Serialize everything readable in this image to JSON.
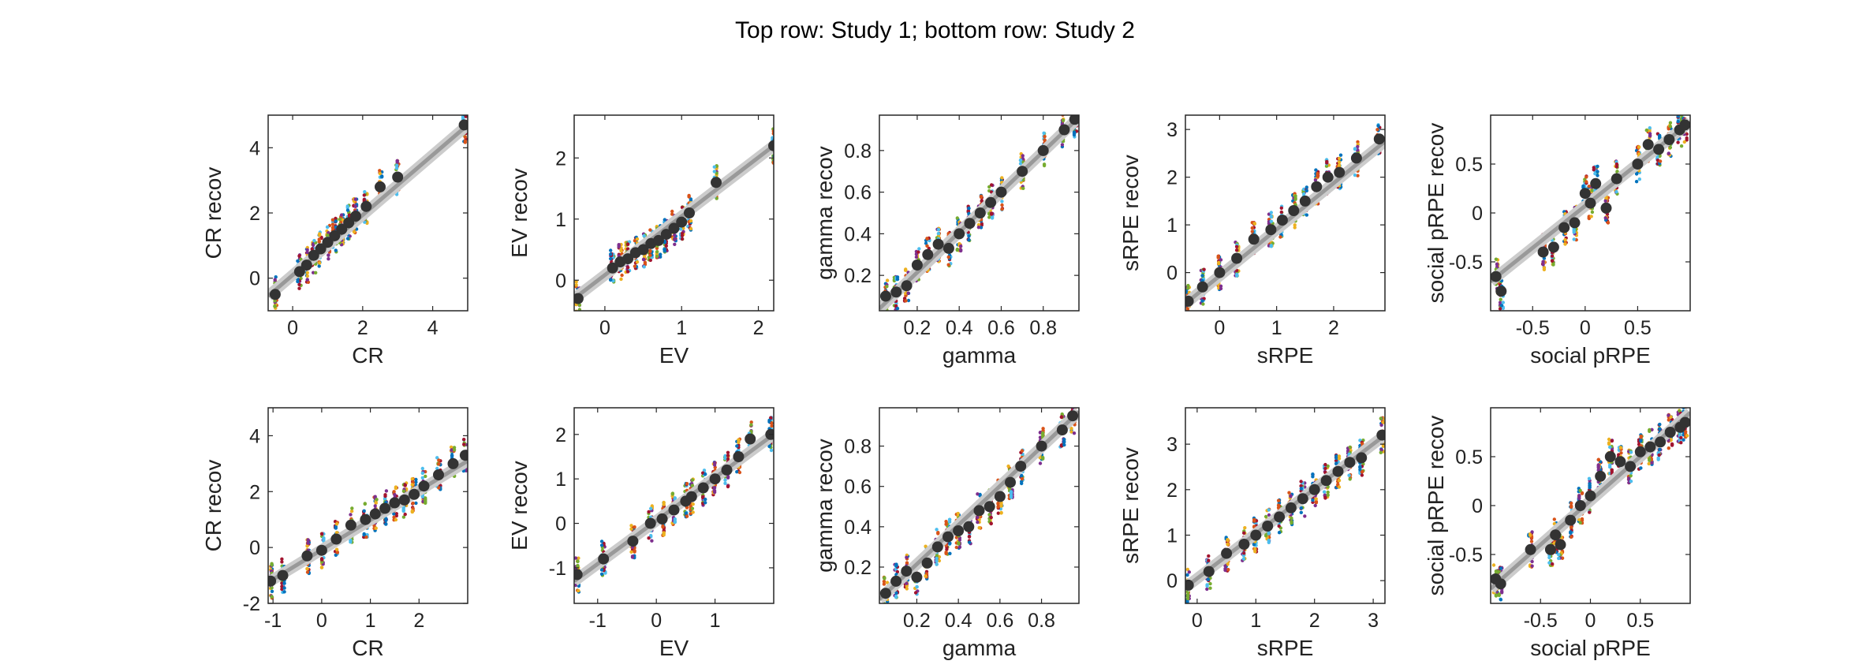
{
  "figure": {
    "title": "Top row: Study 1; bottom row: Study 2",
    "colors": [
      "#0072BD",
      "#D95319",
      "#EDB120",
      "#7E2F8E",
      "#77AC30",
      "#4DBEEE",
      "#A2142F"
    ],
    "mean_marker_color": "#333333",
    "fit_line_color": "#999999"
  },
  "chart_data": [
    {
      "type": "scatter",
      "panel": "study1-CR",
      "xlabel": "CR",
      "ylabel": "CR recov",
      "xlim": [
        -0.7,
        5.0
      ],
      "ylim": [
        -1.0,
        5.0
      ],
      "xticks": [
        0,
        2,
        4
      ],
      "yticks": [
        0,
        2,
        4
      ],
      "means": {
        "x": [
          -0.5,
          0.2,
          0.4,
          0.6,
          0.8,
          1.0,
          1.2,
          1.4,
          1.6,
          1.8,
          2.1,
          2.5,
          3.0,
          4.9
        ],
        "y": [
          -0.5,
          0.2,
          0.4,
          0.7,
          0.9,
          1.1,
          1.3,
          1.5,
          1.7,
          1.9,
          2.2,
          2.8,
          3.1,
          4.7
        ]
      },
      "fit": {
        "x": [
          -0.7,
          5.0
        ],
        "y": [
          -0.55,
          4.7
        ]
      }
    },
    {
      "type": "scatter",
      "panel": "study1-EV",
      "xlabel": "EV",
      "ylabel": "EV recov",
      "xlim": [
        -0.4,
        2.2
      ],
      "ylim": [
        -0.5,
        2.7
      ],
      "xticks": [
        0,
        1,
        2
      ],
      "yticks": [
        0,
        1,
        2
      ],
      "means": {
        "x": [
          -0.35,
          0.1,
          0.2,
          0.3,
          0.4,
          0.5,
          0.6,
          0.7,
          0.8,
          0.9,
          1.0,
          1.1,
          1.45,
          2.2
        ],
        "y": [
          -0.3,
          0.2,
          0.3,
          0.35,
          0.45,
          0.5,
          0.6,
          0.65,
          0.75,
          0.85,
          0.95,
          1.1,
          1.6,
          2.2
        ]
      },
      "fit": {
        "x": [
          -0.4,
          2.2
        ],
        "y": [
          -0.3,
          2.2
        ]
      }
    },
    {
      "type": "scatter",
      "panel": "study1-gamma",
      "xlabel": "gamma",
      "ylabel": "gamma recov",
      "xlim": [
        0.02,
        0.97
      ],
      "ylim": [
        0.03,
        0.97
      ],
      "xticks": [
        0.2,
        0.4,
        0.6,
        0.8
      ],
      "yticks": [
        0.2,
        0.4,
        0.6,
        0.8
      ],
      "means": {
        "x": [
          0.05,
          0.1,
          0.15,
          0.2,
          0.25,
          0.3,
          0.35,
          0.4,
          0.45,
          0.5,
          0.55,
          0.6,
          0.7,
          0.8,
          0.9,
          0.95
        ],
        "y": [
          0.1,
          0.12,
          0.15,
          0.25,
          0.3,
          0.35,
          0.33,
          0.4,
          0.45,
          0.5,
          0.55,
          0.6,
          0.7,
          0.8,
          0.9,
          0.95
        ]
      },
      "fit": {
        "x": [
          0.02,
          0.97
        ],
        "y": [
          0.04,
          0.96
        ]
      }
    },
    {
      "type": "scatter",
      "panel": "study1-sRPE",
      "xlabel": "sRPE",
      "ylabel": "sRPE recov",
      "xlim": [
        -0.6,
        2.9
      ],
      "ylim": [
        -0.8,
        3.3
      ],
      "xticks": [
        0,
        1,
        2
      ],
      "yticks": [
        0,
        1,
        2,
        3
      ],
      "means": {
        "x": [
          -0.55,
          -0.3,
          0.0,
          0.3,
          0.6,
          0.9,
          1.1,
          1.3,
          1.5,
          1.7,
          1.9,
          2.1,
          2.4,
          2.8
        ],
        "y": [
          -0.6,
          -0.3,
          0.0,
          0.3,
          0.7,
          0.9,
          1.1,
          1.3,
          1.5,
          1.8,
          2.0,
          2.1,
          2.4,
          2.8
        ]
      },
      "fit": {
        "x": [
          -0.6,
          2.9
        ],
        "y": [
          -0.65,
          2.75
        ]
      }
    },
    {
      "type": "scatter",
      "panel": "study1-social-pRPE",
      "xlabel": "social pRPE",
      "ylabel": "social pRPE recov",
      "xlim": [
        -0.9,
        1.0
      ],
      "ylim": [
        -1.0,
        1.0
      ],
      "xticks": [
        -0.5,
        0,
        0.5
      ],
      "yticks": [
        -0.5,
        0,
        0.5
      ],
      "means": {
        "x": [
          -0.85,
          -0.8,
          -0.4,
          -0.3,
          -0.2,
          -0.1,
          0.0,
          0.05,
          0.1,
          0.2,
          0.3,
          0.5,
          0.6,
          0.7,
          0.8,
          0.9,
          0.95
        ],
        "y": [
          -0.65,
          -0.8,
          -0.4,
          -0.35,
          -0.15,
          -0.1,
          0.2,
          0.1,
          0.3,
          0.05,
          0.35,
          0.5,
          0.7,
          0.65,
          0.75,
          0.85,
          0.9
        ]
      },
      "fit": {
        "x": [
          -0.9,
          1.0
        ],
        "y": [
          -0.7,
          0.93
        ]
      }
    },
    {
      "type": "scatter",
      "panel": "study2-CR",
      "xlabel": "CR",
      "ylabel": "CR recov",
      "xlim": [
        -1.1,
        3.0
      ],
      "ylim": [
        -2.0,
        5.0
      ],
      "xticks": [
        -1,
        0,
        1,
        2
      ],
      "yticks": [
        -2,
        0,
        2,
        4
      ],
      "means": {
        "x": [
          -1.05,
          -0.8,
          -0.3,
          0.0,
          0.3,
          0.6,
          0.9,
          1.1,
          1.3,
          1.5,
          1.7,
          1.9,
          2.1,
          2.4,
          2.7,
          2.95
        ],
        "y": [
          -1.2,
          -1.0,
          -0.3,
          -0.1,
          0.3,
          0.8,
          1.0,
          1.2,
          1.4,
          1.6,
          1.7,
          1.9,
          2.2,
          2.6,
          3.0,
          3.3
        ]
      },
      "fit": {
        "x": [
          -1.1,
          3.0
        ],
        "y": [
          -1.25,
          3.1
        ]
      }
    },
    {
      "type": "scatter",
      "panel": "study2-EV",
      "xlabel": "EV",
      "ylabel": "EV recov",
      "xlim": [
        -1.4,
        2.0
      ],
      "ylim": [
        -1.8,
        2.6
      ],
      "xticks": [
        -1,
        0,
        1
      ],
      "yticks": [
        -1,
        0,
        1,
        2
      ],
      "means": {
        "x": [
          -1.35,
          -0.9,
          -0.4,
          -0.1,
          0.1,
          0.3,
          0.5,
          0.6,
          0.8,
          1.0,
          1.2,
          1.4,
          1.6,
          1.95
        ],
        "y": [
          -1.15,
          -0.8,
          -0.4,
          0.0,
          0.1,
          0.3,
          0.5,
          0.6,
          0.8,
          1.0,
          1.2,
          1.5,
          1.9,
          2.0
        ]
      },
      "fit": {
        "x": [
          -1.4,
          2.0
        ],
        "y": [
          -1.3,
          2.0
        ]
      }
    },
    {
      "type": "scatter",
      "panel": "study2-gamma",
      "xlabel": "gamma",
      "ylabel": "gamma recov",
      "xlim": [
        0.02,
        0.98
      ],
      "ylim": [
        0.02,
        0.99
      ],
      "xticks": [
        0.2,
        0.4,
        0.6,
        0.8
      ],
      "yticks": [
        0.2,
        0.4,
        0.6,
        0.8
      ],
      "means": {
        "x": [
          0.05,
          0.1,
          0.15,
          0.2,
          0.25,
          0.3,
          0.35,
          0.4,
          0.45,
          0.5,
          0.55,
          0.6,
          0.65,
          0.7,
          0.8,
          0.9,
          0.95
        ],
        "y": [
          0.07,
          0.13,
          0.18,
          0.15,
          0.22,
          0.3,
          0.35,
          0.38,
          0.4,
          0.48,
          0.5,
          0.55,
          0.62,
          0.7,
          0.8,
          0.88,
          0.95
        ]
      },
      "fit": {
        "x": [
          0.02,
          0.98
        ],
        "y": [
          0.04,
          0.97
        ]
      }
    },
    {
      "type": "scatter",
      "panel": "study2-sRPE",
      "xlabel": "sRPE",
      "ylabel": "sRPE recov",
      "xlim": [
        -0.2,
        3.2
      ],
      "ylim": [
        -0.5,
        3.8
      ],
      "xticks": [
        0,
        1,
        2,
        3
      ],
      "yticks": [
        0,
        1,
        2,
        3
      ],
      "means": {
        "x": [
          -0.15,
          0.2,
          0.5,
          0.8,
          1.0,
          1.2,
          1.4,
          1.6,
          1.8,
          2.0,
          2.2,
          2.4,
          2.6,
          2.8,
          3.15
        ],
        "y": [
          -0.1,
          0.2,
          0.6,
          0.8,
          1.0,
          1.2,
          1.4,
          1.6,
          1.8,
          2.0,
          2.2,
          2.4,
          2.6,
          2.7,
          3.2
        ]
      },
      "fit": {
        "x": [
          -0.2,
          3.2
        ],
        "y": [
          -0.15,
          3.2
        ]
      }
    },
    {
      "type": "scatter",
      "panel": "study2-social-pRPE",
      "xlabel": "social pRPE",
      "ylabel": "social pRPE recov",
      "xlim": [
        -1.0,
        1.0
      ],
      "ylim": [
        -1.0,
        1.0
      ],
      "xticks": [
        -0.5,
        0,
        0.5
      ],
      "yticks": [
        -0.5,
        0,
        0.5
      ],
      "means": {
        "x": [
          -0.95,
          -0.9,
          -0.6,
          -0.4,
          -0.35,
          -0.3,
          -0.2,
          -0.1,
          0.0,
          0.1,
          0.2,
          0.3,
          0.4,
          0.5,
          0.6,
          0.7,
          0.8,
          0.9,
          0.95
        ],
        "y": [
          -0.75,
          -0.8,
          -0.45,
          -0.45,
          -0.3,
          -0.4,
          -0.15,
          0.0,
          0.1,
          0.3,
          0.5,
          0.45,
          0.4,
          0.55,
          0.6,
          0.65,
          0.75,
          0.8,
          0.85
        ]
      },
      "fit": {
        "x": [
          -1.0,
          1.0
        ],
        "y": [
          -0.85,
          0.95
        ]
      }
    }
  ]
}
